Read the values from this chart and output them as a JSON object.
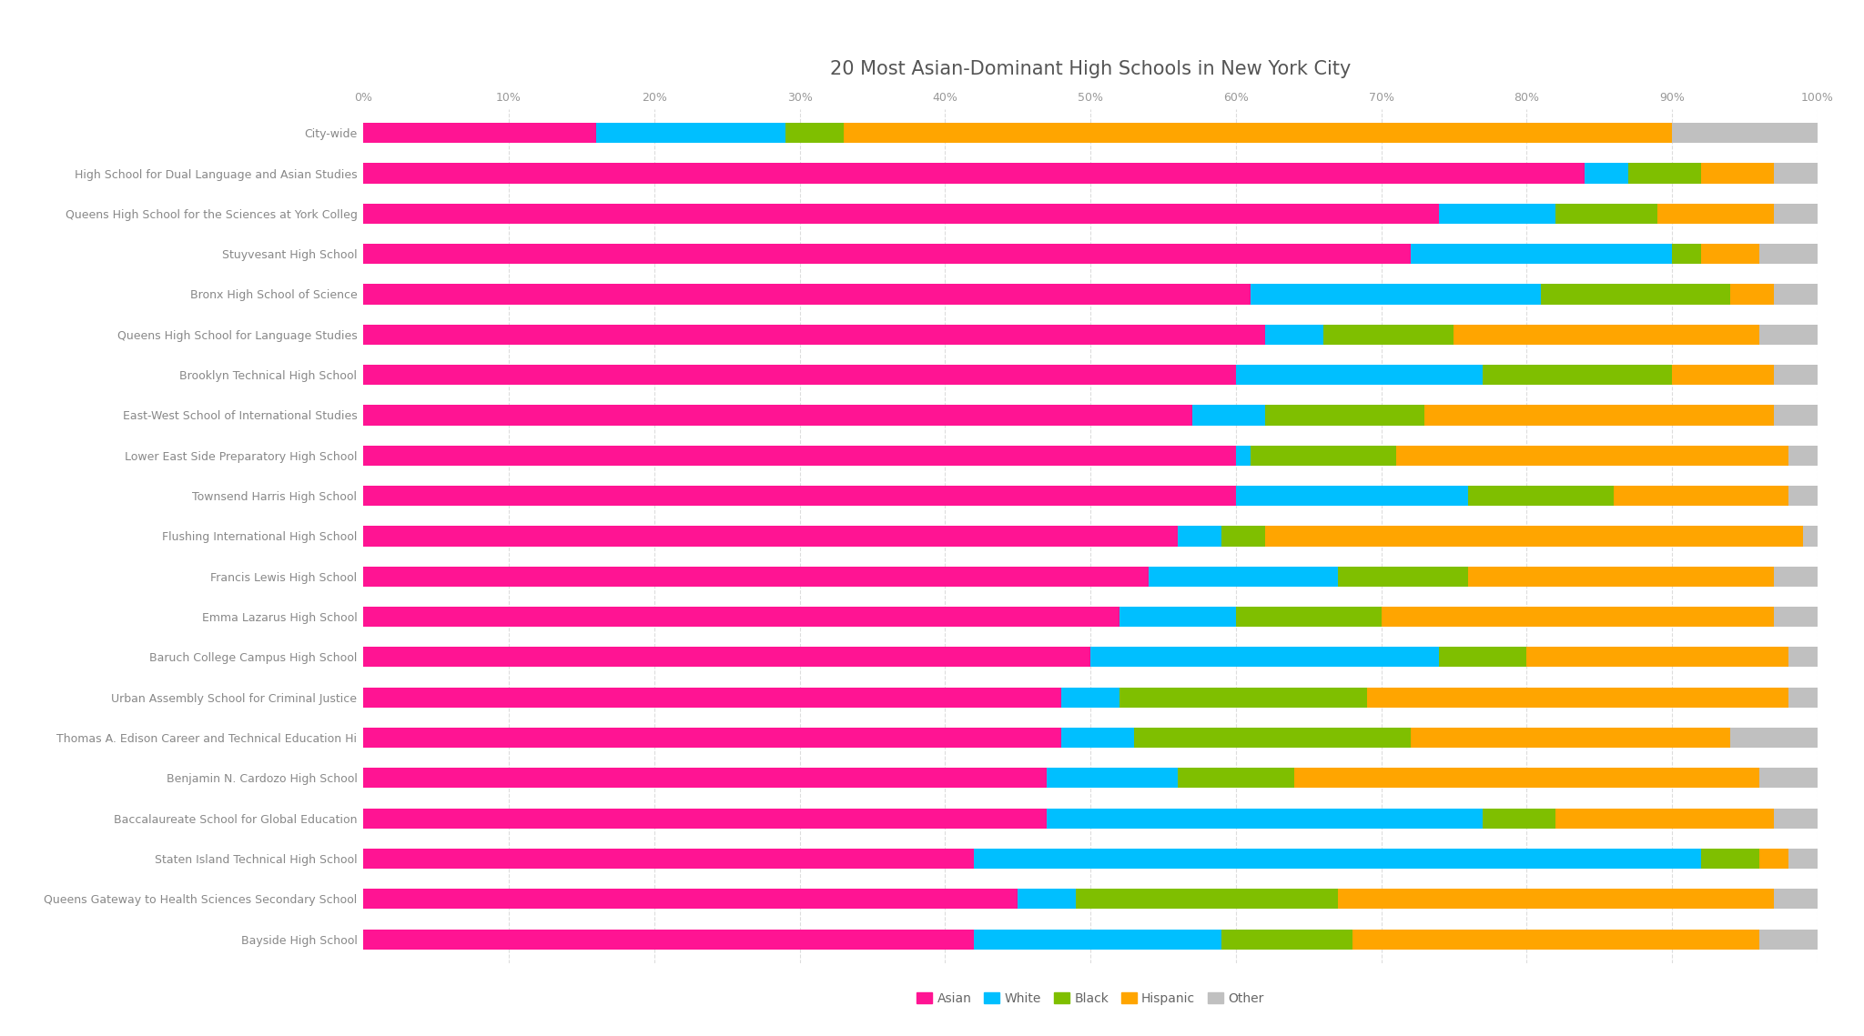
{
  "title": "20 Most Asian-Dominant High Schools in New York City",
  "schools": [
    "City-wide",
    "High School for Dual Language and Asian Studies",
    "Queens High School for the Sciences at York Colleg",
    "Stuyvesant High School",
    "Bronx High School of Science",
    "Queens High School for Language Studies",
    "Brooklyn Technical High School",
    "East-West School of International Studies",
    "Lower East Side Preparatory High School",
    "Townsend Harris High School",
    "Flushing International High School",
    "Francis Lewis High School",
    "Emma Lazarus High School",
    "Baruch College Campus High School",
    "Urban Assembly School for Criminal Justice",
    "Thomas A. Edison Career and Technical Education Hi",
    "Benjamin N. Cardozo High School",
    "Baccalaureate School for Global Education",
    "Staten Island Technical High School",
    "Queens Gateway to Health Sciences Secondary School",
    "Bayside High School"
  ],
  "data": {
    "Asian": [
      16,
      84,
      74,
      72,
      61,
      62,
      60,
      57,
      60,
      60,
      56,
      54,
      52,
      50,
      48,
      48,
      47,
      47,
      42,
      45,
      42
    ],
    "White": [
      13,
      3,
      8,
      18,
      20,
      4,
      17,
      5,
      1,
      16,
      3,
      13,
      8,
      24,
      4,
      5,
      9,
      30,
      50,
      4,
      17
    ],
    "Black": [
      4,
      5,
      7,
      2,
      13,
      9,
      13,
      11,
      10,
      10,
      3,
      9,
      10,
      6,
      17,
      19,
      8,
      5,
      4,
      18,
      9
    ],
    "Hispanic": [
      57,
      5,
      8,
      4,
      3,
      21,
      7,
      24,
      27,
      12,
      37,
      21,
      27,
      18,
      29,
      22,
      32,
      15,
      2,
      30,
      28
    ],
    "Other": [
      10,
      3,
      3,
      4,
      3,
      4,
      3,
      3,
      2,
      2,
      1,
      3,
      3,
      2,
      2,
      6,
      4,
      3,
      2,
      3,
      4
    ]
  },
  "colors": {
    "Asian": "#FF1493",
    "White": "#00BFFF",
    "Black": "#7FBF00",
    "Hispanic": "#FFA500",
    "Other": "#C0C0C0"
  },
  "legend_order": [
    "Asian",
    "White",
    "Black",
    "Hispanic",
    "Other"
  ],
  "background_color": "#FFFFFF",
  "bar_height": 0.5,
  "title_fontsize": 15,
  "tick_fontsize": 9,
  "label_fontsize": 9
}
